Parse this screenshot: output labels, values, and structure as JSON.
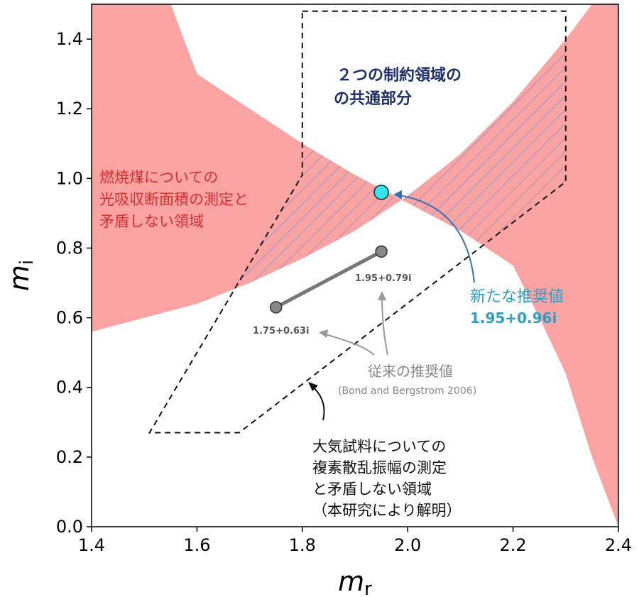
{
  "chart_data": {
    "type": "scatter",
    "xlabel_main": "m",
    "xlabel_sub": "r",
    "ylabel_main": "m",
    "ylabel_sub": "i",
    "xlim": [
      1.4,
      2.4
    ],
    "ylim": [
      0.0,
      1.5
    ],
    "xticks": [
      "1.4",
      "1.6",
      "1.8",
      "2.0",
      "2.2",
      "2.4"
    ],
    "yticks": [
      "0.0",
      "0.2",
      "0.4",
      "0.6",
      "0.8",
      "1.0",
      "1.2",
      "1.4"
    ],
    "xtick_values": [
      1.4,
      1.6,
      1.8,
      2.0,
      2.2,
      2.4
    ],
    "ytick_values": [
      0.0,
      0.2,
      0.4,
      0.6,
      0.8,
      1.0,
      1.2,
      1.4
    ],
    "grid": false,
    "colors": {
      "red_band": "#f9a3a3",
      "hatch": "#6f8fd0",
      "old_points": "#888888",
      "new_point": "#33e5ee",
      "blue_arrow": "#3a6fb5",
      "new_label": "#2b9fc6"
    },
    "red_band": {
      "label_lines": [
        "燃焼煤についての",
        "光吸収断面積の測定と",
        "矛盾しない領域"
      ],
      "upper_edge": [
        [
          1.4,
          1.5
        ],
        [
          1.55,
          1.5
        ],
        [
          1.6,
          1.3
        ],
        [
          1.7,
          1.2
        ],
        [
          1.8,
          1.1
        ],
        [
          1.9,
          1.01
        ],
        [
          2.0,
          0.93
        ],
        [
          2.1,
          0.85
        ],
        [
          2.2,
          0.75
        ],
        [
          2.25,
          0.6
        ],
        [
          2.3,
          0.44
        ],
        [
          2.35,
          0.2
        ],
        [
          2.4,
          0.0
        ]
      ],
      "lower_edge": [
        [
          1.4,
          0.56
        ],
        [
          1.5,
          0.6
        ],
        [
          1.6,
          0.64
        ],
        [
          1.7,
          0.7
        ],
        [
          1.8,
          0.77
        ],
        [
          1.9,
          0.85
        ],
        [
          2.0,
          0.95
        ],
        [
          2.1,
          1.07
        ],
        [
          2.2,
          1.22
        ],
        [
          2.3,
          1.4
        ],
        [
          2.35,
          1.5
        ],
        [
          2.4,
          1.5
        ]
      ]
    },
    "dashed_region": {
      "label_lines": [
        "大気試料についての",
        "複素散乱振幅の測定",
        "と矛盾しない領域",
        "（本研究により解明）"
      ],
      "polygon": [
        [
          1.8,
          1.48
        ],
        [
          2.3,
          1.48
        ],
        [
          2.3,
          0.99
        ],
        [
          1.68,
          0.27
        ],
        [
          1.51,
          0.27
        ],
        [
          1.8,
          1.01
        ]
      ]
    },
    "overlap": {
      "label_lines": [
        "２つの制約領域の",
        "の共通部分"
      ]
    },
    "old_values": {
      "label": "従来の推奨値",
      "source": "(Bond and Bergstrom 2006)",
      "points": [
        {
          "x": 1.75,
          "y": 0.63,
          "label": "1.75+0.63i"
        },
        {
          "x": 1.95,
          "y": 0.79,
          "label": "1.95+0.79i"
        }
      ]
    },
    "new_value": {
      "label": "新たな推奨値",
      "value_label": "1.95+0.96i",
      "x": 1.95,
      "y": 0.96
    }
  }
}
